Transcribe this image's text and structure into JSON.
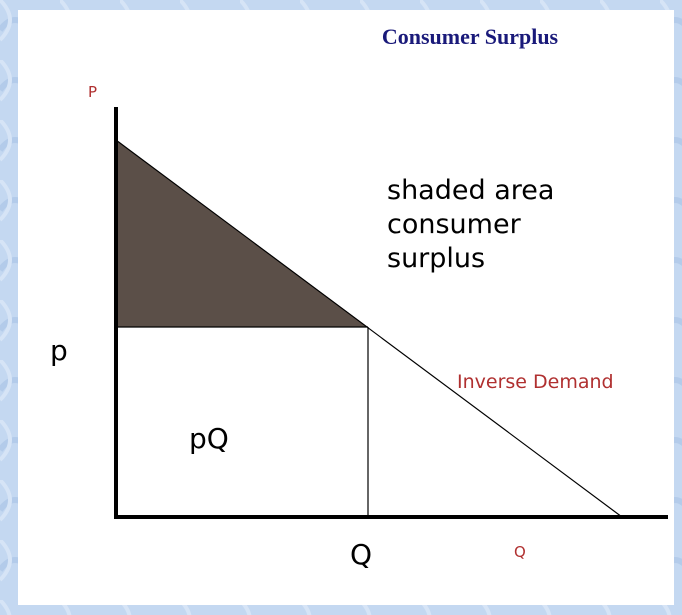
{
  "title": "Consumer Surplus",
  "axes": {
    "y_label": "P",
    "x_label": "Q"
  },
  "labels": {
    "price": "p",
    "quantity": "Q",
    "revenue": "pQ",
    "demand": "Inverse Demand"
  },
  "annotation": [
    "shaded area",
    "consumer",
    "surplus"
  ]
}
